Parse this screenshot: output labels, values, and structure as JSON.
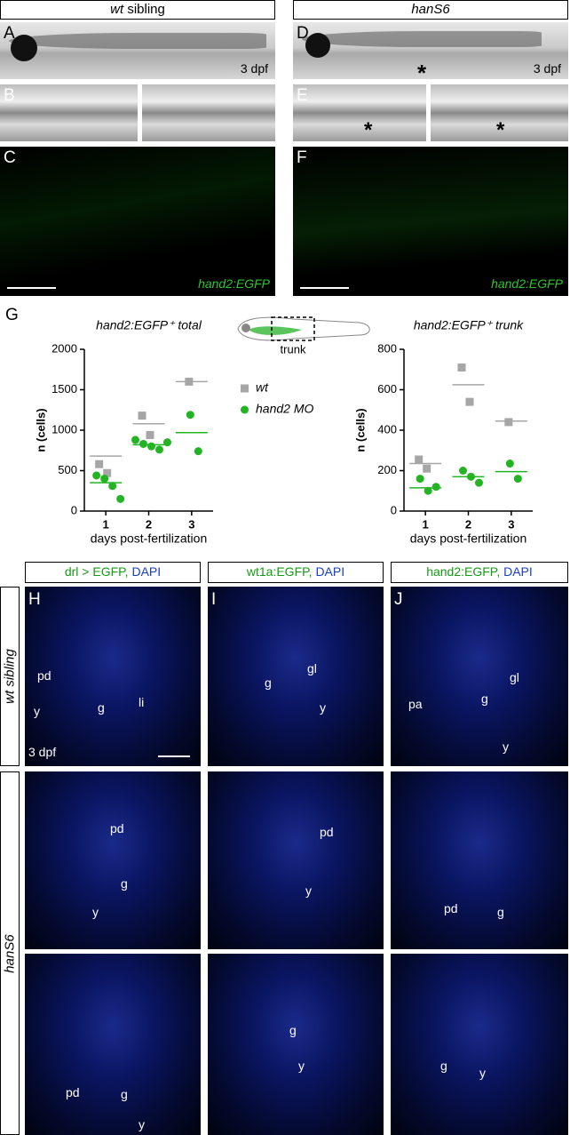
{
  "headers": [
    {
      "gene": "wt",
      "label": "sibling"
    },
    {
      "gene": "hanS6"
    }
  ],
  "top_panels": {
    "A": {
      "letter": "A",
      "stage": "3 dpf"
    },
    "B": {
      "letter": "B"
    },
    "C": {
      "letter": "C",
      "marker": "hand2:EGFP"
    },
    "D": {
      "letter": "D",
      "stage": "3 dpf",
      "asterisk": "*"
    },
    "E": {
      "letter": "E",
      "asterisks": [
        "*",
        "*"
      ]
    },
    "F": {
      "letter": "F",
      "marker": "hand2:EGFP"
    }
  },
  "panel_g": {
    "letter": "G",
    "schematic_label": "trunk"
  },
  "chart_data": [
    {
      "type": "scatter",
      "title": "hand2:EGFP⁺ total",
      "y_label": "n (cells)",
      "x_label": "days post-fertilization",
      "xlim": [
        0.5,
        3.5
      ],
      "xticks": [
        1,
        2,
        3
      ],
      "ylim": [
        0,
        2000
      ],
      "yticks": [
        0,
        500,
        1000,
        1500,
        2000
      ],
      "series": [
        {
          "name": "wt",
          "color": "#a6a6a6",
          "marker": "square",
          "x": [
            1,
            1,
            2,
            2,
            3
          ],
          "values": [
            580,
            470,
            1180,
            940,
            1600
          ],
          "mean_x": [
            1,
            2,
            3
          ],
          "means": [
            680,
            1080,
            1600
          ]
        },
        {
          "name": "hand2 MO",
          "color": "#22b422",
          "marker": "circle",
          "x": [
            1,
            1,
            1,
            1,
            2,
            2,
            2,
            2,
            2,
            3,
            3
          ],
          "values": [
            440,
            400,
            310,
            150,
            880,
            830,
            800,
            760,
            850,
            1190,
            740
          ],
          "mean_x": [
            1,
            2,
            3
          ],
          "means": [
            350,
            820,
            970
          ]
        }
      ]
    },
    {
      "type": "scatter",
      "title": "hand2:EGFP⁺ trunk",
      "y_label": "n (cells)",
      "x_label": "days post-fertilization",
      "xlim": [
        0.5,
        3.5
      ],
      "xticks": [
        1,
        2,
        3
      ],
      "ylim": [
        0,
        800
      ],
      "yticks": [
        0,
        200,
        400,
        600,
        800
      ],
      "series": [
        {
          "color": "#a6a6a6",
          "marker": "square",
          "x": [
            1,
            1,
            2,
            2,
            3
          ],
          "values": [
            255,
            210,
            710,
            540,
            440
          ],
          "mean_x": [
            1,
            2,
            3
          ],
          "means": [
            235,
            625,
            445
          ]
        },
        {
          "color": "#22b422",
          "marker": "circle",
          "x": [
            1,
            1,
            1,
            2,
            2,
            2,
            3,
            3
          ],
          "values": [
            160,
            100,
            120,
            200,
            170,
            140,
            235,
            160
          ],
          "mean_x": [
            1,
            2,
            3
          ],
          "means": [
            115,
            170,
            195
          ]
        }
      ]
    }
  ],
  "section_headers": [
    {
      "reporter": "drl > EGFP,",
      "stain": "DAPI"
    },
    {
      "reporter": "wt1a:EGFP,",
      "stain": "DAPI"
    },
    {
      "reporter": "hand2:EGFP,",
      "stain": "DAPI"
    }
  ],
  "row_labels": [
    "wt sibling",
    "hanS6"
  ],
  "grid": {
    "H1": {
      "letter": "H",
      "labels": [
        "pd",
        "g",
        "li",
        "y"
      ],
      "stage": "3 dpf"
    },
    "I1": {
      "letter": "I",
      "labels": [
        "gl",
        "g",
        "y"
      ]
    },
    "J1": {
      "letter": "J",
      "labels": [
        "gl",
        "pa",
        "g",
        "y"
      ]
    },
    "H2": {
      "labels": [
        "pd",
        "g",
        "y"
      ]
    },
    "I2": {
      "labels": [
        "pd",
        "y"
      ]
    },
    "J2": {
      "labels": [
        "pd",
        "g"
      ]
    },
    "H3": {
      "labels": [
        "pd",
        "g",
        "y"
      ]
    },
    "I3": {
      "labels": [
        "g",
        "y"
      ]
    },
    "J3": {
      "labels": [
        "g",
        "y"
      ]
    }
  }
}
